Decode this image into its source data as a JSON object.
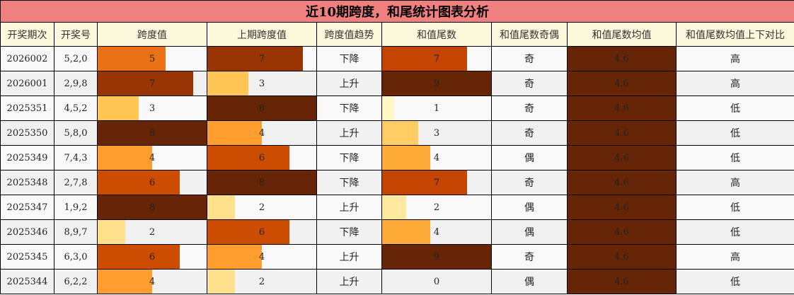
{
  "title": "近10期跨度，和尾统计图表分析",
  "headers": [
    "开奖期次",
    "开奖号",
    "跨度值",
    "上期跨度值",
    "跨度值趋势",
    "和值尾数",
    "和值尾数奇偶",
    "和值尾数均值",
    "和值尾数均值上下对比"
  ],
  "span_scale": {
    "max": 8,
    "colors": {
      "0": "",
      "1": "#fff7bc",
      "2": "#ffe08c",
      "3": "#ffc655",
      "4": "#ff9d2e",
      "5": "#eb7117",
      "6": "#cc4c02",
      "7": "#993404",
      "8": "#662506"
    }
  },
  "tail_scale": {
    "max": 9,
    "colors": {
      "0": "",
      "1": "#fff8c4",
      "2": "#ffeaa0",
      "3": "#ffcd63",
      "4": "#ffab3a",
      "5": "#f88a22",
      "6": "#e86a10",
      "7": "#c44402",
      "8": "#943203",
      "9": "#662506"
    }
  },
  "mean_color": "#662506",
  "chart_data": {
    "type": "table",
    "rows": [
      {
        "period": "2026002",
        "numbers": "5,2,0",
        "span": 5,
        "prev_span": 7,
        "trend": "下降",
        "tail": 7,
        "parity": "奇",
        "mean": "4.6",
        "compare": "高"
      },
      {
        "period": "2026001",
        "numbers": "2,9,8",
        "span": 7,
        "prev_span": 3,
        "trend": "上升",
        "tail": 9,
        "parity": "奇",
        "mean": "4.6",
        "compare": "高"
      },
      {
        "period": "2025351",
        "numbers": "4,5,2",
        "span": 3,
        "prev_span": 8,
        "trend": "下降",
        "tail": 1,
        "parity": "奇",
        "mean": "4.6",
        "compare": "低"
      },
      {
        "period": "2025350",
        "numbers": "5,8,0",
        "span": 8,
        "prev_span": 4,
        "trend": "上升",
        "tail": 3,
        "parity": "奇",
        "mean": "4.6",
        "compare": "低"
      },
      {
        "period": "2025349",
        "numbers": "7,4,3",
        "span": 4,
        "prev_span": 6,
        "trend": "下降",
        "tail": 4,
        "parity": "偶",
        "mean": "4.6",
        "compare": "低"
      },
      {
        "period": "2025348",
        "numbers": "2,7,8",
        "span": 6,
        "prev_span": 8,
        "trend": "下降",
        "tail": 7,
        "parity": "奇",
        "mean": "4.6",
        "compare": "高"
      },
      {
        "period": "2025347",
        "numbers": "1,9,2",
        "span": 8,
        "prev_span": 2,
        "trend": "上升",
        "tail": 2,
        "parity": "偶",
        "mean": "4.6",
        "compare": "低"
      },
      {
        "period": "2025346",
        "numbers": "8,9,7",
        "span": 2,
        "prev_span": 6,
        "trend": "下降",
        "tail": 4,
        "parity": "偶",
        "mean": "4.6",
        "compare": "低"
      },
      {
        "period": "2025345",
        "numbers": "6,3,0",
        "span": 6,
        "prev_span": 4,
        "trend": "上升",
        "tail": 9,
        "parity": "奇",
        "mean": "4.6",
        "compare": "高"
      },
      {
        "period": "2025344",
        "numbers": "6,2,2",
        "span": 4,
        "prev_span": 2,
        "trend": "上升",
        "tail": 0,
        "parity": "偶",
        "mean": "4.6",
        "compare": "低"
      }
    ]
  }
}
